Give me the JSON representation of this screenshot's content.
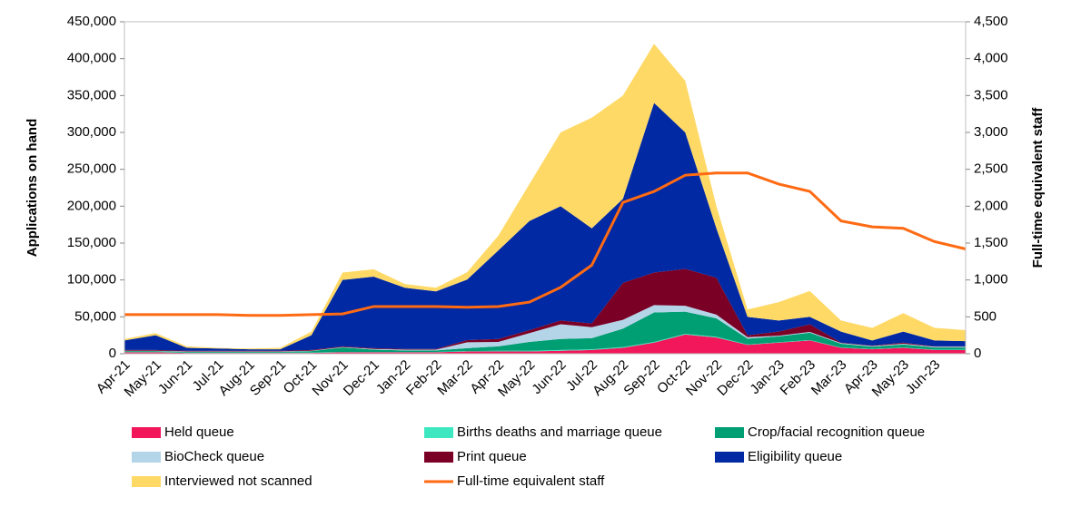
{
  "chart_data": {
    "type": "stacked-area-line",
    "y_label": "Applications on hand",
    "y2_label": "Full-time equivalent staff",
    "categories": [
      "Apr-21",
      "May-21",
      "Jun-21",
      "Jul-21",
      "Aug-21",
      "Sep-21",
      "Oct-21",
      "Nov-21",
      "Dec-21",
      "Jan-22",
      "Feb-22",
      "Mar-22",
      "Apr-22",
      "May-22",
      "Jun-22",
      "Jul-22",
      "Aug-22",
      "Sep-22",
      "Oct-22",
      "Nov-22",
      "Dec-22",
      "Jan-23",
      "Feb-23",
      "Mar-23",
      "Apr-23",
      "May-23",
      "Jun-23",
      null
    ],
    "series": [
      {
        "name": "Held queue",
        "color": "#f2165a",
        "values": [
          2000,
          2000,
          1000,
          1000,
          1000,
          1000,
          1000,
          2000,
          2000,
          2000,
          2000,
          3000,
          3000,
          3000,
          4000,
          5000,
          8000,
          15000,
          26000,
          22000,
          12000,
          15000,
          18000,
          8000,
          6000,
          8000,
          5000,
          5000
        ]
      },
      {
        "name": "Births deaths and marriage queue",
        "color": "#3de8c0",
        "values": [
          500,
          500,
          500,
          500,
          500,
          500,
          500,
          500,
          500,
          500,
          500,
          500,
          1000,
          1000,
          1000,
          1000,
          1000,
          1000,
          1000,
          1000,
          500,
          500,
          500,
          500,
          500,
          500,
          500,
          500
        ]
      },
      {
        "name": "Crop/facial recognition queue",
        "color": "#009e73",
        "values": [
          1000,
          1000,
          1000,
          1000,
          1000,
          1000,
          2000,
          6000,
          3000,
          2000,
          2000,
          4000,
          6000,
          12000,
          15000,
          15000,
          25000,
          40000,
          30000,
          25000,
          8000,
          8000,
          10000,
          5000,
          3000,
          4000,
          3000,
          3000
        ]
      },
      {
        "name": "BioCheck queue",
        "color": "#b4d4e8",
        "values": [
          500,
          500,
          500,
          500,
          500,
          500,
          500,
          500,
          1000,
          1000,
          1000,
          8000,
          6000,
          12000,
          20000,
          15000,
          12000,
          10000,
          8000,
          5000,
          2000,
          1000,
          1000,
          1000,
          1000,
          1000,
          1000,
          1000
        ]
      },
      {
        "name": "Print queue",
        "color": "#7a0026",
        "values": [
          1000,
          1000,
          1000,
          1000,
          1000,
          1000,
          1000,
          1000,
          1000,
          1000,
          1000,
          3000,
          4000,
          4000,
          5000,
          5000,
          50000,
          44000,
          50000,
          50000,
          2500,
          5500,
          10500,
          500,
          500,
          1500,
          500,
          500
        ]
      },
      {
        "name": "Eligibility queue",
        "color": "#0029a3",
        "values": [
          13000,
          20000,
          4000,
          3000,
          2000,
          2000,
          20000,
          90000,
          97000,
          83000,
          78000,
          82000,
          120000,
          148000,
          155000,
          129000,
          114000,
          230000,
          185000,
          67000,
          25000,
          15000,
          10000,
          15000,
          7000,
          15000,
          8000,
          7000
        ]
      },
      {
        "name": "Interviewed not scanned",
        "color": "#ffd966",
        "values": [
          2000,
          3000,
          2000,
          1000,
          1000,
          2000,
          5000,
          10000,
          10000,
          5000,
          5000,
          10000,
          20000,
          50000,
          100000,
          150000,
          140000,
          80000,
          70000,
          30000,
          10000,
          25000,
          35000,
          15000,
          17000,
          25000,
          17000,
          15000
        ]
      },
      {
        "name": "Full-time equivalent staff",
        "color": "#ff6a13",
        "axis": "y2",
        "values": [
          530,
          530,
          530,
          530,
          520,
          520,
          530,
          540,
          640,
          640,
          640,
          630,
          640,
          700,
          900,
          1200,
          2050,
          2200,
          2420,
          2450,
          2450,
          2300,
          2200,
          1800,
          1720,
          1700,
          1520,
          1420
        ]
      }
    ],
    "ylim": [
      0,
      450000
    ],
    "yticks": [
      0,
      {
        "value": 50000,
        "label": "50,000"
      },
      {
        "value": 100000,
        "label": "100,000"
      },
      {
        "value": 150000,
        "label": "150,000"
      },
      {
        "value": 200000,
        "label": "200,000"
      },
      {
        "value": 250000,
        "label": "250,000"
      },
      {
        "value": 300000,
        "label": "300,000"
      },
      {
        "value": 350000,
        "label": "350,000"
      },
      {
        "value": 400000,
        "label": "400,000"
      },
      {
        "value": 450000,
        "label": "450,000"
      }
    ],
    "y2lim": [
      0,
      4500
    ],
    "y2ticks": [
      0,
      500,
      {
        "value": 1000,
        "label": "1,000"
      },
      {
        "value": 1500,
        "label": "1,500"
      },
      {
        "value": 2000,
        "label": "2,000"
      },
      {
        "value": 2500,
        "label": "2,500"
      },
      {
        "value": 3000,
        "label": "3,000"
      },
      {
        "value": 3500,
        "label": "3,500"
      },
      {
        "value": 4000,
        "label": "4,000"
      },
      {
        "value": 4500,
        "label": "4,500"
      }
    ],
    "legend": "bottom"
  }
}
